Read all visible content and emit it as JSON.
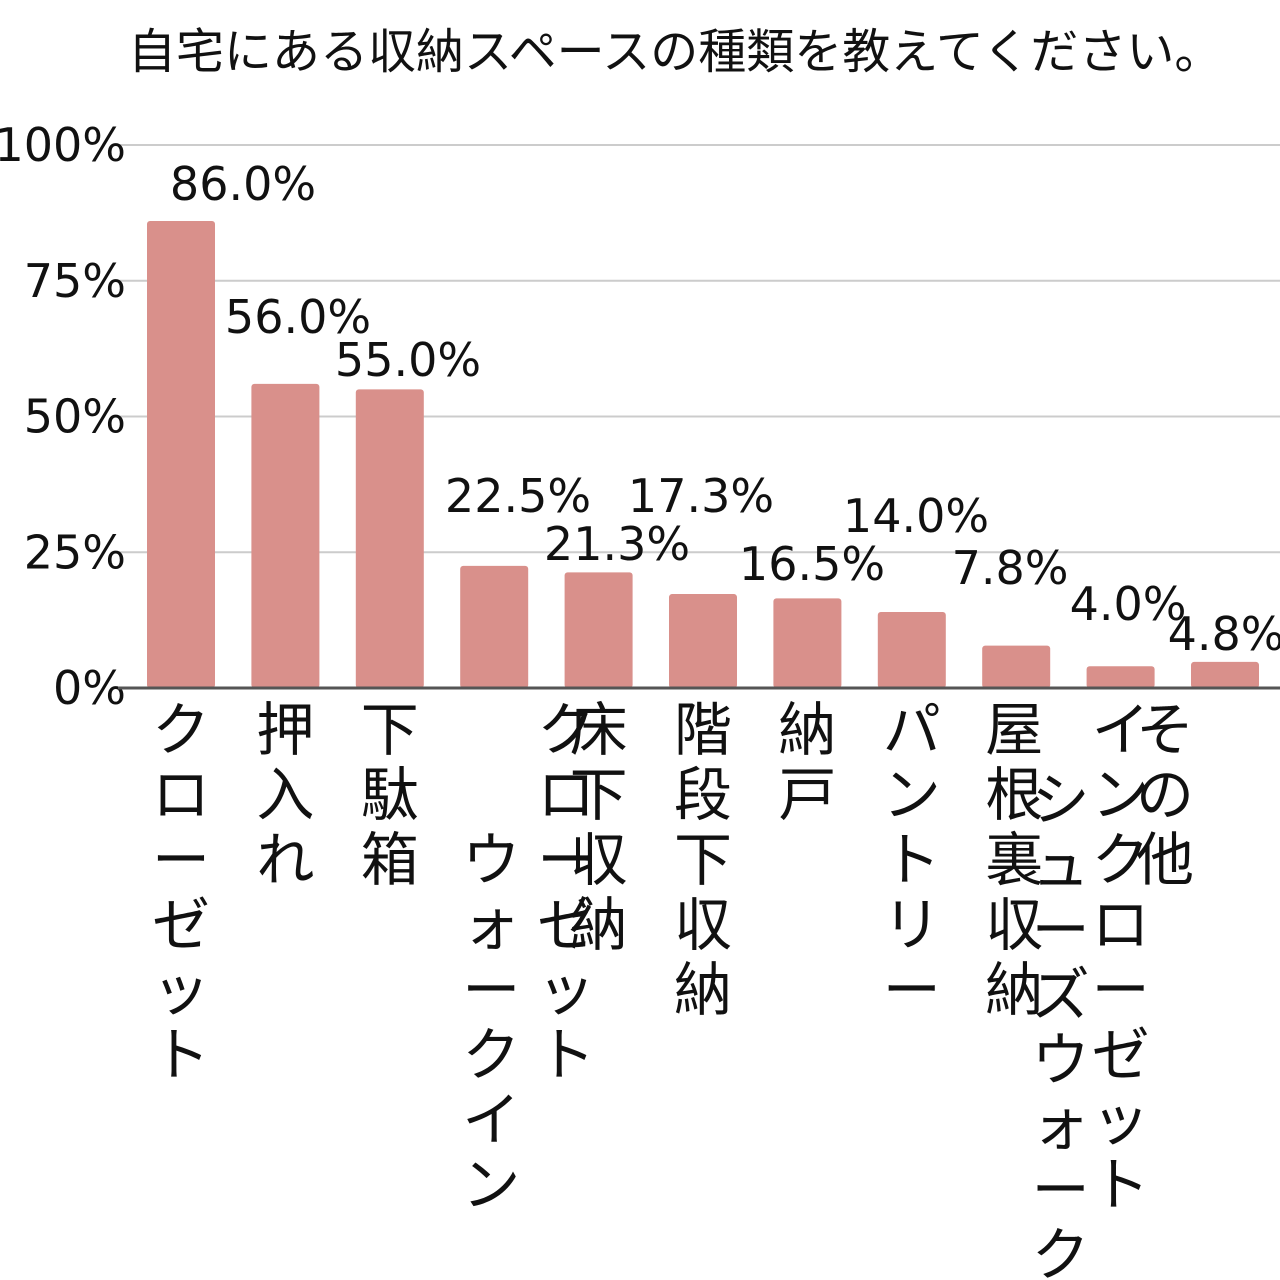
{
  "chart_data": {
    "type": "bar",
    "title": "自宅にある収納スペースの種類を教えてください。",
    "xlabel": "",
    "ylabel": "",
    "ylim": [
      0,
      100
    ],
    "yticks": [
      "0%",
      "25%",
      "50%",
      "75%",
      "100%"
    ],
    "grid": true,
    "legend": "none",
    "bar_color": "#d9908b",
    "categories": [
      "クローゼット",
      "押入れ",
      "下駄箱",
      "ウォークイン クローゼット",
      "床下収納",
      "階段下収納",
      "納戸",
      "パントリー",
      "屋根裏収納",
      "シューズウォーク インクローゼット",
      "その他"
    ],
    "values": [
      86.0,
      56.0,
      55.0,
      22.5,
      21.3,
      17.3,
      16.5,
      14.0,
      7.8,
      4.0,
      4.8
    ],
    "value_labels": [
      "86.0%",
      "56.0%",
      "55.0%",
      "22.5%",
      "21.3%",
      "17.3%",
      "16.5%",
      "14.0%",
      "7.8%",
      "4.0%",
      "4.8%"
    ]
  }
}
